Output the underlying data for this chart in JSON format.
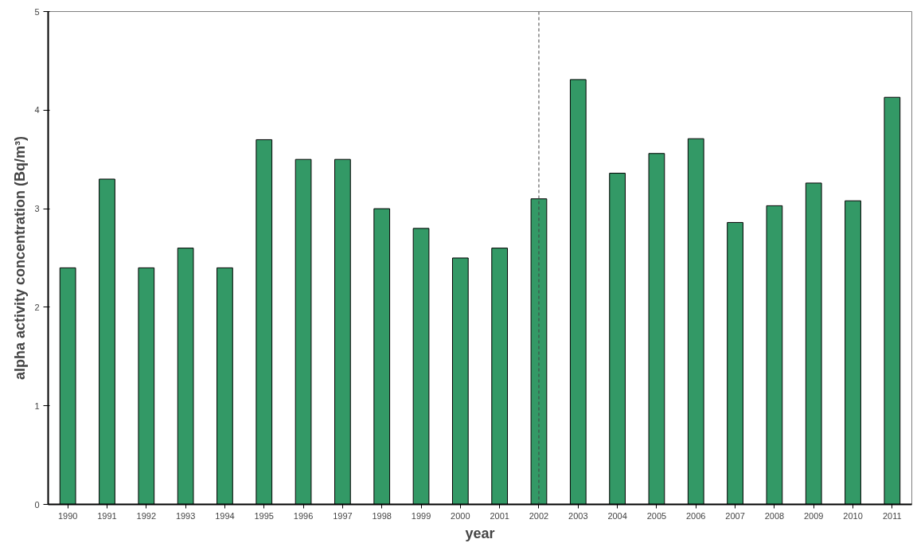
{
  "chart_data": {
    "type": "bar",
    "xlabel": "year",
    "ylabel": "alpha activity concentration (Bq/m³)",
    "categories": [
      "1990",
      "1991",
      "1992",
      "1993",
      "1994",
      "1995",
      "1996",
      "1997",
      "1998",
      "1999",
      "2000",
      "2001",
      "2002",
      "2003",
      "2004",
      "2005",
      "2006",
      "2007",
      "2008",
      "2009",
      "2010",
      "2011"
    ],
    "values": [
      2.4,
      3.3,
      2.4,
      2.6,
      2.4,
      3.7,
      3.5,
      3.5,
      3.0,
      2.8,
      2.5,
      2.6,
      3.1,
      4.31,
      3.36,
      3.56,
      3.71,
      2.86,
      3.03,
      3.26,
      3.08,
      4.13
    ],
    "color": "#339966",
    "ylim": [
      0,
      5
    ],
    "yticks": [
      0,
      1,
      2,
      3,
      4,
      5
    ],
    "grid": false,
    "ref_lines": [
      {
        "axis": "x",
        "value": "2002",
        "line_style": "dashed",
        "color": "#404040"
      }
    ]
  }
}
